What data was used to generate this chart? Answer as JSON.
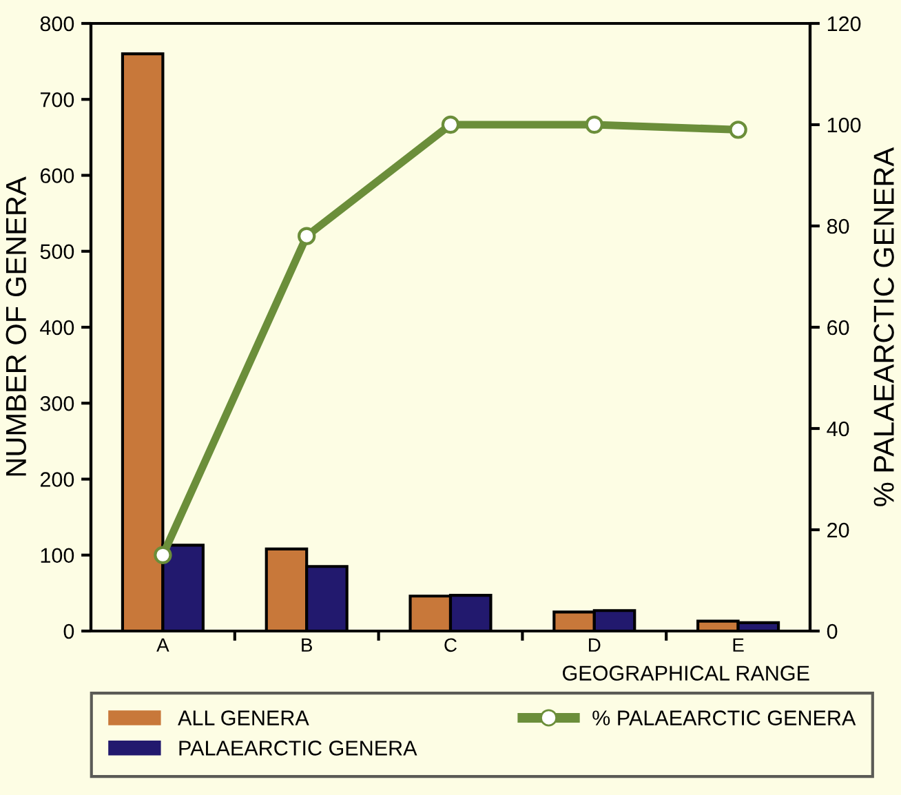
{
  "chart_data": {
    "type": "bar",
    "categories": [
      "A",
      "B",
      "C",
      "D",
      "E"
    ],
    "xlabel": "GEOGRAPHICAL RANGE",
    "ylabel": "NUMBER OF GENERA",
    "y2label": "% PALAEARCTIC GENERA",
    "series": [
      {
        "name": "ALL GENERA",
        "color": "#c8783a",
        "values": [
          760,
          108,
          46,
          25,
          13
        ]
      },
      {
        "name": "PALAEARCTIC GENERA",
        "color": "#22196e",
        "values": [
          113,
          85,
          47,
          27,
          11
        ]
      },
      {
        "name": "% PALAEARCTIC GENERA",
        "type": "line",
        "axis": "y2",
        "color": "#6b8e3a",
        "marker": "circle",
        "values": [
          15,
          78,
          100,
          100,
          99
        ]
      }
    ],
    "ylim": [
      0,
      800
    ],
    "yticks": [
      0,
      100,
      200,
      300,
      400,
      500,
      600,
      700,
      800
    ],
    "y2lim": [
      0,
      120
    ],
    "y2ticks": [
      0,
      20,
      40,
      60,
      80,
      100,
      120
    ],
    "grid": false,
    "legend": "bottom"
  }
}
